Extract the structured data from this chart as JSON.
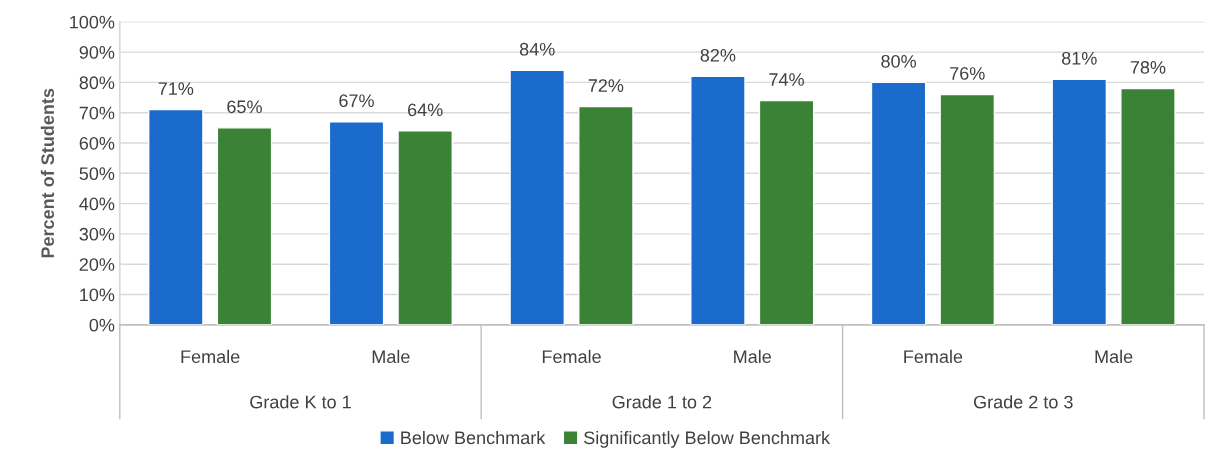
{
  "chart_data": {
    "type": "bar",
    "ylabel": "Percent of Students",
    "categories": [
      "Female",
      "Male",
      "Female",
      "Male",
      "Female",
      "Male"
    ],
    "series": [
      {
        "name": "Below Benchmark",
        "color": "#1a6bcc",
        "values": [
          71,
          67,
          84,
          82,
          80,
          81
        ],
        "value_labels": [
          "71%",
          "67%",
          "84%",
          "82%",
          "80%",
          "81%"
        ]
      },
      {
        "name": "Significantly Below Benchmark",
        "color": "#3a8236",
        "values": [
          65,
          64,
          72,
          74,
          76,
          78
        ],
        "value_labels": [
          "65%",
          "64%",
          "72%",
          "74%",
          "76%",
          "78%"
        ]
      }
    ],
    "annotations": [
      "Grade K to 1",
      "Grade 1 to 2",
      "Grade 2 to 3"
    ],
    "ylim": [
      0,
      100
    ],
    "yticks": [
      {
        "value": 0,
        "label": "0%"
      },
      {
        "value": 10,
        "label": "10%"
      },
      {
        "value": 20,
        "label": "20%"
      },
      {
        "value": 30,
        "label": "30%"
      },
      {
        "value": 40,
        "label": "40%"
      },
      {
        "value": 50,
        "label": "50%"
      },
      {
        "value": 60,
        "label": "60%"
      },
      {
        "value": 70,
        "label": "70%"
      },
      {
        "value": 80,
        "label": "80%"
      },
      {
        "value": 90,
        "label": "90%"
      },
      {
        "value": 100,
        "label": "100%"
      }
    ],
    "grid": "y",
    "legend": "bottom"
  }
}
